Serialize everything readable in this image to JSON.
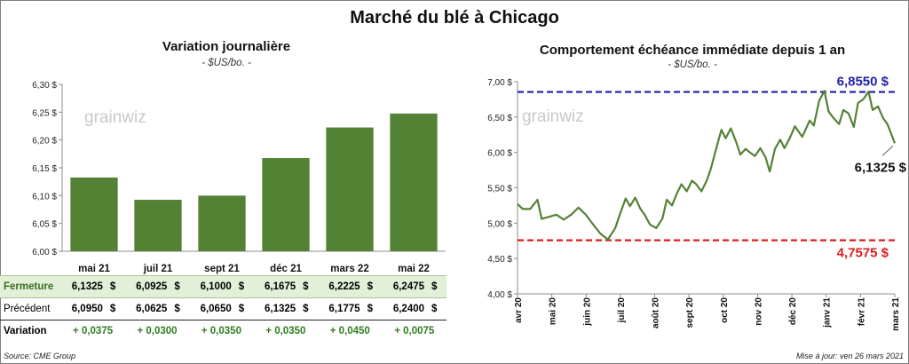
{
  "title": "Marché du blé à Chicago",
  "left": {
    "subtitle": "Variation  journalière",
    "unit": "- $US/bo. -",
    "watermark": "grainwiz"
  },
  "right": {
    "subtitle": "Comportement  échéance immédiate depuis 1 an",
    "unit": "- $US/bo. -",
    "watermark": "grainwiz",
    "high_label": "6,8550 $",
    "low_label": "4,7575 $",
    "last_label": "6,1325 $"
  },
  "table": {
    "rows": [
      {
        "label": "Fermeture",
        "values": [
          "6,1325",
          "6,0925",
          "6,1000",
          "6,1675",
          "6,2225",
          "6,2475"
        ],
        "currency": "$"
      },
      {
        "label": "Précédent",
        "values": [
          "6,0950",
          "6,0625",
          "6,0650",
          "6,1325",
          "6,1775",
          "6,2400"
        ],
        "currency": "$"
      },
      {
        "label": "Variation",
        "values": [
          "+ 0,0375",
          "+ 0,0300",
          "+ 0,0350",
          "+ 0,0350",
          "+ 0,0450",
          "+ 0,0075"
        ]
      }
    ]
  },
  "footer": {
    "source": "Source: CME Group",
    "updated": "Mise à jour: ven 26 mars 2021"
  },
  "colors": {
    "bar": "#548235",
    "line": "#548235",
    "high_line": "#1f1fa8",
    "low_line": "#e01b1b",
    "fermeture_bg": "#e2efd9",
    "variation_text": "#2e7d1e"
  },
  "chart_data": [
    {
      "type": "bar",
      "categories": [
        "mai 21",
        "juil 21",
        "sept 21",
        "déc 21",
        "mars 22",
        "mai 22"
      ],
      "values": [
        6.1325,
        6.0925,
        6.1,
        6.1675,
        6.2225,
        6.2475
      ],
      "ylim": [
        6.0,
        6.3
      ],
      "yticks": [
        "6,00 $",
        "6,05 $",
        "6,10 $",
        "6,15 $",
        "6,20 $",
        "6,25 $",
        "6,30 $"
      ],
      "grid": false
    },
    {
      "type": "line",
      "x_labels": [
        "avr 20",
        "mai 20",
        "juin 20",
        "juil 20",
        "août 20",
        "sept 20",
        "oct 20",
        "nov 20",
        "déc 20",
        "janv 21",
        "févr 21",
        "mars 21"
      ],
      "x_range": [
        "2020-04-01",
        "2021-03-26"
      ],
      "ylim": [
        4.0,
        7.0
      ],
      "yticks": [
        "4,00 $",
        "4,50 $",
        "5,00 $",
        "5,50 $",
        "6,00 $",
        "6,50 $",
        "7,00 $"
      ],
      "reference_lines": [
        {
          "value": 6.855,
          "style": "dashed",
          "color": "#1f1fa8"
        },
        {
          "value": 4.7575,
          "style": "dashed",
          "color": "#e01b1b"
        }
      ],
      "series": [
        {
          "points": [
            [
              "2020-04-01",
              5.27
            ],
            [
              "2020-04-06",
              5.2
            ],
            [
              "2020-04-13",
              5.2
            ],
            [
              "2020-04-20",
              5.33
            ],
            [
              "2020-04-24",
              5.06
            ],
            [
              "2020-05-01",
              5.09
            ],
            [
              "2020-05-08",
              5.12
            ],
            [
              "2020-05-15",
              5.05
            ],
            [
              "2020-05-22",
              5.12
            ],
            [
              "2020-05-29",
              5.22
            ],
            [
              "2020-06-05",
              5.12
            ],
            [
              "2020-06-12",
              4.98
            ],
            [
              "2020-06-19",
              4.85
            ],
            [
              "2020-06-26",
              4.77
            ],
            [
              "2020-07-03",
              4.93
            ],
            [
              "2020-07-08",
              5.15
            ],
            [
              "2020-07-13",
              5.35
            ],
            [
              "2020-07-17",
              5.24
            ],
            [
              "2020-07-22",
              5.36
            ],
            [
              "2020-07-27",
              5.2
            ],
            [
              "2020-07-31",
              5.12
            ],
            [
              "2020-08-05",
              4.98
            ],
            [
              "2020-08-11",
              4.93
            ],
            [
              "2020-08-17",
              5.07
            ],
            [
              "2020-08-21",
              5.33
            ],
            [
              "2020-08-26",
              5.25
            ],
            [
              "2020-08-31",
              5.43
            ],
            [
              "2020-09-04",
              5.55
            ],
            [
              "2020-09-09",
              5.45
            ],
            [
              "2020-09-14",
              5.6
            ],
            [
              "2020-09-18",
              5.55
            ],
            [
              "2020-09-23",
              5.45
            ],
            [
              "2020-09-28",
              5.6
            ],
            [
              "2020-10-02",
              5.77
            ],
            [
              "2020-10-07",
              6.05
            ],
            [
              "2020-10-12",
              6.32
            ],
            [
              "2020-10-16",
              6.2
            ],
            [
              "2020-10-21",
              6.34
            ],
            [
              "2020-10-26",
              6.15
            ],
            [
              "2020-10-30",
              5.97
            ],
            [
              "2020-11-04",
              6.05
            ],
            [
              "2020-11-09",
              5.99
            ],
            [
              "2020-11-13",
              5.95
            ],
            [
              "2020-11-18",
              6.06
            ],
            [
              "2020-11-23",
              5.93
            ],
            [
              "2020-11-27",
              5.73
            ],
            [
              "2020-12-02",
              6.05
            ],
            [
              "2020-12-07",
              6.18
            ],
            [
              "2020-12-11",
              6.06
            ],
            [
              "2020-12-16",
              6.2
            ],
            [
              "2020-12-21",
              6.37
            ],
            [
              "2020-12-28",
              6.22
            ],
            [
              "2021-01-04",
              6.45
            ],
            [
              "2021-01-08",
              6.38
            ],
            [
              "2021-01-13",
              6.73
            ],
            [
              "2021-01-18",
              6.87
            ],
            [
              "2021-01-22",
              6.58
            ],
            [
              "2021-01-27",
              6.48
            ],
            [
              "2021-02-01",
              6.4
            ],
            [
              "2021-02-05",
              6.6
            ],
            [
              "2021-02-10",
              6.55
            ],
            [
              "2021-02-15",
              6.36
            ],
            [
              "2021-02-19",
              6.7
            ],
            [
              "2021-02-24",
              6.75
            ],
            [
              "2021-03-01",
              6.86
            ],
            [
              "2021-03-05",
              6.6
            ],
            [
              "2021-03-10",
              6.65
            ],
            [
              "2021-03-15",
              6.48
            ],
            [
              "2021-03-19",
              6.4
            ],
            [
              "2021-03-23",
              6.25
            ],
            [
              "2021-03-26",
              6.13
            ]
          ]
        }
      ],
      "grid": false
    }
  ]
}
